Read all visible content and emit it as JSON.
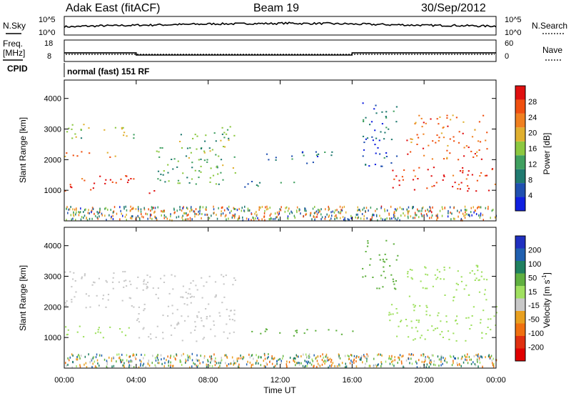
{
  "header": {
    "station": "Adak East (fitACF)",
    "beam": "Beam 19",
    "date": "30/Sep/2012"
  },
  "noise_panel": {
    "left_label": "N.Sky",
    "right_label": "N.Search",
    "left_ticks": [
      "10^5",
      "10^0"
    ],
    "right_ticks": [
      "10^5",
      "10^0"
    ],
    "sky_level": [
      2.2,
      2.4,
      2.5,
      2.6,
      2.7,
      2.8,
      2.9,
      3.0,
      3.1,
      3.1,
      3.2,
      3.2,
      3.3,
      3.2,
      3.2,
      3.1,
      3.0,
      2.9,
      2.8,
      2.7,
      2.6,
      2.6,
      2.5,
      2.4,
      2.3
    ]
  },
  "freq_panel": {
    "left_label_top": "Freq.",
    "left_label_bottom": "[MHz]",
    "right_label": "Nave",
    "left_ticks": [
      "18",
      "8"
    ],
    "right_ticks": [
      "60",
      "0"
    ],
    "freq_segments": [
      {
        "start_h": 0,
        "end_h": 4,
        "mhz": 12.5
      },
      {
        "start_h": 4,
        "end_h": 16,
        "mhz": 10.8
      },
      {
        "start_h": 16,
        "end_h": 24,
        "mhz": 12.5
      }
    ],
    "nave_level": 20
  },
  "cpid": {
    "label": "CPID",
    "mode": "normal (fast) 151 RF"
  },
  "power_panel": {
    "ylabel": "Slant Range [km]",
    "yticks": [
      "1000",
      "2000",
      "3000",
      "4000"
    ],
    "colorbar_label": "Power [dB]",
    "colorbar_ticks": [
      "4",
      "8",
      "12",
      "16",
      "20",
      "24",
      "28"
    ],
    "colors": [
      "#1020e0",
      "#2050b0",
      "#207a70",
      "#40a060",
      "#8cc840",
      "#e0b030",
      "#f08020",
      "#f05010",
      "#e01010"
    ]
  },
  "velocity_panel": {
    "ylabel": "Slant Range [km]",
    "yticks": [
      "1000",
      "2000",
      "3000",
      "4000"
    ],
    "colorbar_label": "Velocity [m s^-1]",
    "colorbar_ticks": [
      "200",
      "100",
      "50",
      "15",
      "-15",
      "-50",
      "-100",
      "-200"
    ],
    "colors": [
      "#2030c0",
      "#2060b0",
      "#208060",
      "#60b040",
      "#a0e060",
      "#c8c8c8",
      "#e8a020",
      "#f07010",
      "#e03010",
      "#e00000"
    ]
  },
  "xaxis": {
    "label": "Time UT",
    "ticks": [
      "00:00",
      "04:00",
      "08:00",
      "12:00",
      "16:00",
      "20:00",
      "00:00"
    ]
  },
  "chart_data": {
    "type": "heatmap",
    "title": "Adak East (fitACF)  Beam 19  30/Sep/2012",
    "xlabel": "Time UT",
    "ylabel": "Slant Range [km]",
    "xlim": [
      "00:00",
      "24:00"
    ],
    "ylim": [
      0,
      4600
    ],
    "power_features": [
      {
        "t0": 0.0,
        "t1": 4.0,
        "r0": 1000,
        "r1": 1500,
        "db": 28
      },
      {
        "t0": 0.0,
        "t1": 4.0,
        "r0": 2100,
        "r1": 2300,
        "db": 22
      },
      {
        "t0": 0.0,
        "t1": 4.0,
        "r0": 2700,
        "r1": 3200,
        "db": 16
      },
      {
        "t0": 4.0,
        "t1": 5.0,
        "r0": 850,
        "r1": 1050,
        "db": 28
      },
      {
        "t0": 5.0,
        "t1": 9.5,
        "r0": 1200,
        "r1": 3100,
        "db": 14
      },
      {
        "t0": 10.0,
        "t1": 13.0,
        "r0": 1100,
        "r1": 1350,
        "db": 10
      },
      {
        "t0": 11.0,
        "t1": 15.0,
        "r0": 1900,
        "r1": 2300,
        "db": 8
      },
      {
        "t0": 16.5,
        "t1": 18.5,
        "r0": 1800,
        "r1": 4000,
        "db": 8
      },
      {
        "t0": 18.0,
        "t1": 24.0,
        "r0": 1000,
        "r1": 1800,
        "db": 28
      },
      {
        "t0": 19.0,
        "t1": 23.5,
        "r0": 2000,
        "r1": 3500,
        "db": 24
      }
    ],
    "velocity_features": [
      {
        "t0": 0.0,
        "t1": 4.0,
        "r0": 1000,
        "r1": 1400,
        "v": 0
      },
      {
        "t0": 0.0,
        "t1": 4.0,
        "r0": 2000,
        "r1": 3200,
        "v": -30
      },
      {
        "t0": 4.0,
        "t1": 9.5,
        "r0": 900,
        "r1": 3100,
        "v": -30
      },
      {
        "t0": 10.0,
        "t1": 13.0,
        "r0": 1050,
        "r1": 1350,
        "v": 30
      },
      {
        "t0": 13.0,
        "t1": 16.0,
        "r0": 1100,
        "r1": 1300,
        "v": 30
      },
      {
        "t0": 16.5,
        "t1": 18.5,
        "r0": 2600,
        "r1": 4200,
        "v": 30
      },
      {
        "t0": 18.0,
        "t1": 24.0,
        "r0": 900,
        "r1": 2100,
        "v": 0
      },
      {
        "t0": 19.0,
        "t1": 23.5,
        "r0": 2200,
        "r1": 3400,
        "v": 0
      }
    ]
  }
}
